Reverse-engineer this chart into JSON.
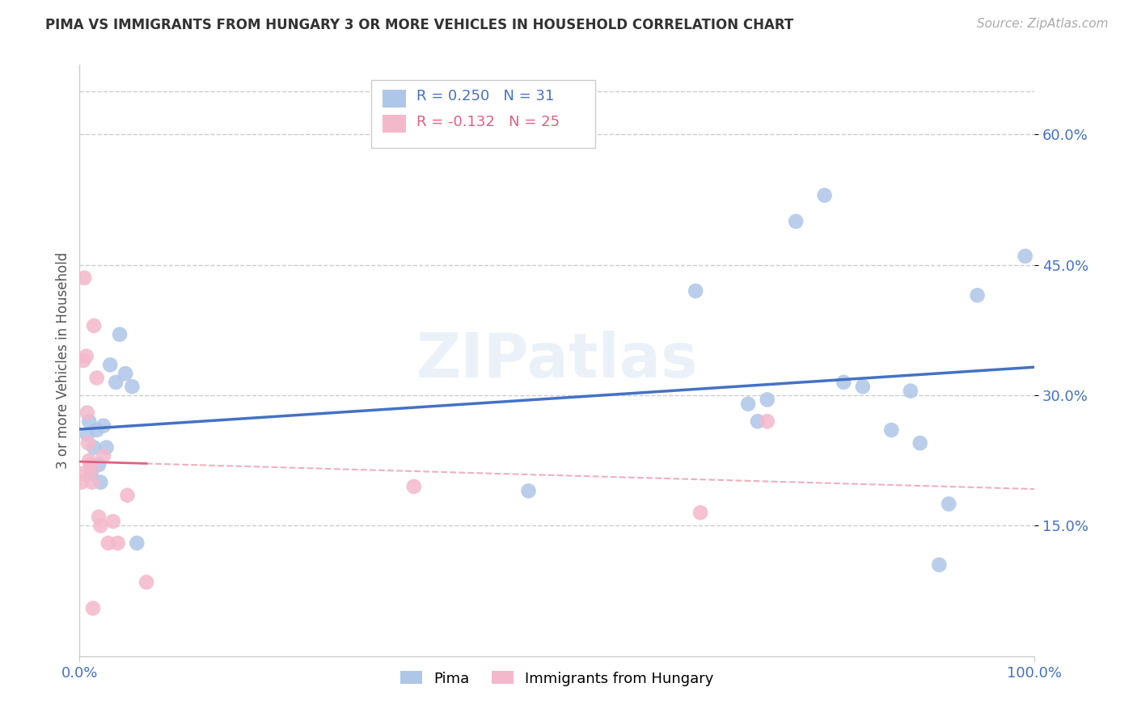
{
  "title": "PIMA VS IMMIGRANTS FROM HUNGARY 3 OR MORE VEHICLES IN HOUSEHOLD CORRELATION CHART",
  "source": "Source: ZipAtlas.com",
  "ylabel": "3 or more Vehicles in Household",
  "xlim": [
    0.0,
    1.0
  ],
  "ylim": [
    0.0,
    0.68
  ],
  "ytick_values": [
    0.15,
    0.3,
    0.45,
    0.6
  ],
  "ytick_labels": [
    "15.0%",
    "30.0%",
    "45.0%",
    "60.0%"
  ],
  "xtick_values": [
    0.0,
    1.0
  ],
  "xtick_labels": [
    "0.0%",
    "100.0%"
  ],
  "grid_color": "#cccccc",
  "background_color": "#ffffff",
  "blue_color": "#aec6e8",
  "pink_color": "#f4b8cb",
  "blue_line_color": "#4472c4",
  "pink_line_color": "#e06080",
  "legend_label_blue": "Pima",
  "legend_label_pink": "Immigrants from Hungary",
  "watermark": "ZIPatlas",
  "pima_x": [
    0.008,
    0.01,
    0.012,
    0.015,
    0.018,
    0.02,
    0.022,
    0.025,
    0.028,
    0.032,
    0.038,
    0.042,
    0.048,
    0.055,
    0.06,
    0.47,
    0.645,
    0.7,
    0.71,
    0.72,
    0.75,
    0.78,
    0.8,
    0.82,
    0.85,
    0.87,
    0.88,
    0.9,
    0.91,
    0.94,
    0.99
  ],
  "pima_y": [
    0.255,
    0.27,
    0.21,
    0.24,
    0.26,
    0.22,
    0.2,
    0.265,
    0.24,
    0.335,
    0.315,
    0.37,
    0.325,
    0.31,
    0.13,
    0.19,
    0.42,
    0.29,
    0.27,
    0.295,
    0.5,
    0.53,
    0.315,
    0.31,
    0.26,
    0.305,
    0.245,
    0.105,
    0.175,
    0.415,
    0.46
  ],
  "hungary_x": [
    0.002,
    0.003,
    0.004,
    0.005,
    0.007,
    0.008,
    0.009,
    0.01,
    0.011,
    0.012,
    0.013,
    0.014,
    0.015,
    0.018,
    0.02,
    0.022,
    0.025,
    0.03,
    0.035,
    0.04,
    0.05,
    0.07,
    0.35,
    0.65,
    0.72
  ],
  "hungary_y": [
    0.2,
    0.21,
    0.34,
    0.435,
    0.345,
    0.28,
    0.245,
    0.225,
    0.22,
    0.215,
    0.2,
    0.055,
    0.38,
    0.32,
    0.16,
    0.15,
    0.23,
    0.13,
    0.155,
    0.13,
    0.185,
    0.085,
    0.195,
    0.165,
    0.27
  ]
}
